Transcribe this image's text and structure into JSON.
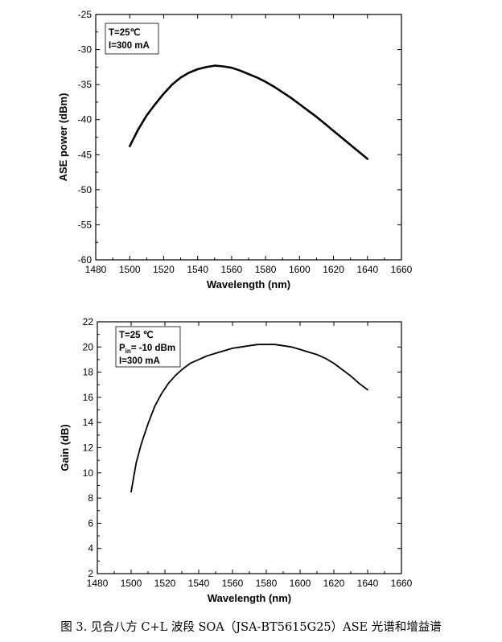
{
  "caption": "图 3. 见合八方 C+L 波段 SOA（JSA-BT5615G25）ASE 光谱和增益谱",
  "chart_data": [
    {
      "type": "line",
      "xlabel": "Wavelength (nm)",
      "ylabel": "ASE power (dBm)",
      "xlim": [
        1480,
        1660
      ],
      "ylim": [
        -60,
        -25
      ],
      "x_ticks": [
        1480,
        1500,
        1520,
        1540,
        1560,
        1580,
        1600,
        1620,
        1640,
        1660
      ],
      "y_ticks": [
        -60,
        -55,
        -50,
        -45,
        -40,
        -35,
        -30,
        -25
      ],
      "grid": false,
      "annotation": [
        "T=25℃",
        "I=300 mA"
      ],
      "line_color": "#000000",
      "series": [
        {
          "x": [
            1500,
            1505,
            1510,
            1515,
            1520,
            1525,
            1530,
            1535,
            1540,
            1545,
            1550,
            1555,
            1560,
            1565,
            1570,
            1575,
            1580,
            1585,
            1590,
            1595,
            1600,
            1605,
            1610,
            1615,
            1620,
            1625,
            1630,
            1635,
            1640
          ],
          "y": [
            -43.8,
            -41.4,
            -39.4,
            -37.8,
            -36.3,
            -35.0,
            -34.0,
            -33.3,
            -32.8,
            -32.5,
            -32.3,
            -32.4,
            -32.6,
            -33.0,
            -33.5,
            -34.0,
            -34.6,
            -35.3,
            -36.1,
            -36.9,
            -37.8,
            -38.7,
            -39.6,
            -40.6,
            -41.6,
            -42.6,
            -43.6,
            -44.6,
            -45.6
          ]
        }
      ]
    },
    {
      "type": "line",
      "xlabel": "Wavelength (nm)",
      "ylabel": "Gain (dB)",
      "xlim": [
        1480,
        1660
      ],
      "ylim": [
        2,
        22
      ],
      "x_ticks": [
        1480,
        1500,
        1520,
        1540,
        1560,
        1580,
        1600,
        1620,
        1640,
        1660
      ],
      "y_ticks": [
        2,
        4,
        6,
        8,
        10,
        12,
        14,
        16,
        18,
        20,
        22
      ],
      "grid": false,
      "annotation": {
        "line1": "T=25 ℃",
        "line2_main": "P",
        "line2_sub": "in",
        "line2_rest": "= -10 dBm",
        "line3": "I=300 mA"
      },
      "line_color": "#000000",
      "series": [
        {
          "x": [
            1500,
            1503,
            1506,
            1510,
            1514,
            1518,
            1522,
            1526,
            1530,
            1535,
            1540,
            1545,
            1550,
            1555,
            1560,
            1565,
            1570,
            1575,
            1580,
            1585,
            1590,
            1595,
            1600,
            1605,
            1610,
            1615,
            1620,
            1625,
            1630,
            1635,
            1640
          ],
          "y": [
            8.5,
            10.8,
            12.3,
            13.9,
            15.3,
            16.3,
            17.1,
            17.7,
            18.2,
            18.7,
            19.0,
            19.3,
            19.5,
            19.7,
            19.9,
            20.0,
            20.1,
            20.2,
            20.2,
            20.2,
            20.1,
            20.0,
            19.8,
            19.6,
            19.4,
            19.1,
            18.7,
            18.2,
            17.7,
            17.1,
            16.6
          ]
        }
      ]
    }
  ]
}
